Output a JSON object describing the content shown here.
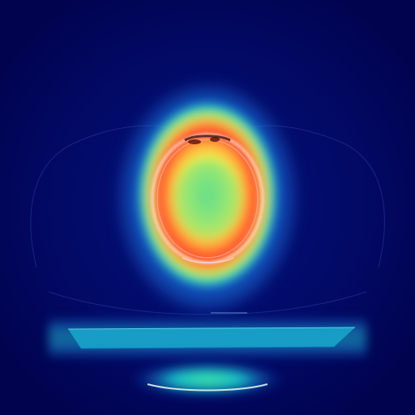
{
  "image": {
    "kind": "ct-scan-heatmap-overlay",
    "background_color": "#02065c",
    "colormap": [
      "#0b0f8a",
      "#1f6cf0",
      "#20d7d0",
      "#7ff06a",
      "#f3f24a",
      "#ff9b3a",
      "#ff2a2a"
    ],
    "heatmap_peak_color": "#ff2a2a",
    "heatmap_inner_color": "#67e07b",
    "skull_outline_color": "#ffd7d7",
    "table_color": "#1aa0c8"
  }
}
